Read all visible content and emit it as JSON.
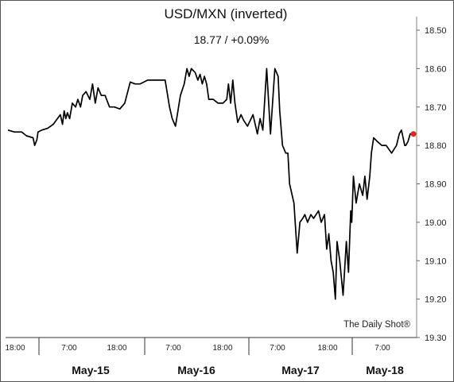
{
  "chart_data": {
    "type": "line",
    "title": "USD/MXN (inverted)",
    "subtitle": "18.77  /  +0.09%",
    "source": "The Daily Shot®",
    "y_inverted": true,
    "ylim": [
      18.5,
      19.3
    ],
    "y_ticks": [
      "18.50",
      "18.60",
      "18.70",
      "18.80",
      "18.90",
      "19.00",
      "19.10",
      "19.20",
      "19.30"
    ],
    "x_ticks": [
      "18:00",
      "7:00",
      "18:00",
      "7:00",
      "18:00",
      "7:00",
      "18:00",
      "7:00"
    ],
    "days": [
      "May-15",
      "May-16",
      "May-17",
      "May-18"
    ],
    "line_color": "#000000",
    "last_point_color": "#e8221b",
    "series": [
      {
        "x": [
          0,
          1.2,
          2.5,
          3.4,
          4.6,
          4.9,
          5.3,
          5.5,
          6.2,
          7.3,
          8.3,
          9.6,
          10.0,
          10.3,
          10.6,
          10.9,
          11.3,
          11.8,
          12.4,
          12.8,
          13.3,
          13.7,
          14.3,
          15.0,
          15.5,
          16.0,
          16.5,
          17.1,
          17.8,
          18.6,
          19.5,
          20.5,
          21.4,
          22.4,
          23.3,
          24.2,
          25.6,
          27.2,
          28.8,
          29.6,
          30.1,
          30.7,
          31.6,
          32.3,
          32.8,
          33.2,
          33.6,
          34.3,
          34.8,
          35.2,
          35.6,
          36.0,
          36.4,
          36.8,
          37.6,
          38.5,
          39.4,
          40.1,
          40.4,
          40.8,
          41.2,
          41.6,
          42.1,
          42.7,
          43.2,
          43.9,
          44.9,
          45.7,
          46.2,
          46.7,
          47.4,
          48.1,
          48.9,
          49.5,
          49.8,
          50.3,
          50.9,
          51.3,
          51.6,
          52.4,
          53.0,
          53.5,
          54.0,
          54.4,
          54.9,
          55.5,
          56.0,
          56.9,
          57.4,
          58.0,
          58.4,
          58.8,
          59.2,
          59.6,
          60.0,
          60.3,
          60.8,
          61.4,
          62.0,
          62.4,
          62.8,
          63.0,
          63.3,
          63.8,
          64.4,
          65.0,
          65.4,
          65.8,
          66.3,
          66.6,
          67.0,
          67.7,
          68.5,
          69.3,
          70.3,
          71.2,
          71.7,
          72.1,
          72.4,
          72.7,
          72.9,
          73.3,
          73.7,
          74.3
        ],
        "y": [
          18.76,
          18.765,
          18.765,
          18.775,
          18.78,
          18.8,
          18.785,
          18.765,
          18.76,
          18.755,
          18.745,
          18.72,
          18.745,
          18.71,
          18.73,
          18.715,
          18.73,
          18.69,
          18.7,
          18.68,
          18.7,
          18.67,
          18.66,
          18.68,
          18.64,
          18.69,
          18.65,
          18.67,
          18.67,
          18.7,
          18.7,
          18.705,
          18.69,
          18.635,
          18.64,
          18.64,
          18.63,
          18.63,
          18.63,
          18.7,
          18.73,
          18.75,
          18.67,
          18.64,
          18.6,
          18.62,
          18.6,
          18.61,
          18.63,
          18.615,
          18.64,
          18.62,
          18.64,
          18.68,
          18.68,
          18.69,
          18.69,
          18.68,
          18.64,
          18.69,
          18.63,
          18.69,
          18.74,
          18.72,
          18.735,
          18.75,
          18.72,
          18.77,
          18.73,
          18.76,
          18.6,
          18.77,
          18.6,
          18.62,
          18.71,
          18.8,
          18.82,
          18.82,
          18.9,
          18.95,
          19.08,
          19.0,
          18.99,
          18.98,
          19.0,
          18.98,
          18.99,
          18.97,
          19.0,
          18.98,
          19.07,
          19.03,
          19.1,
          19.13,
          19.2,
          19.05,
          19.1,
          19.19,
          19.05,
          19.13,
          18.97,
          19.0,
          18.88,
          18.95,
          18.9,
          18.93,
          18.88,
          18.94,
          18.88,
          18.82,
          18.78,
          18.79,
          18.8,
          18.8,
          18.82,
          18.8,
          18.77,
          18.76,
          18.78,
          18.8,
          18.8,
          18.79,
          18.77,
          18.77
        ]
      }
    ]
  }
}
